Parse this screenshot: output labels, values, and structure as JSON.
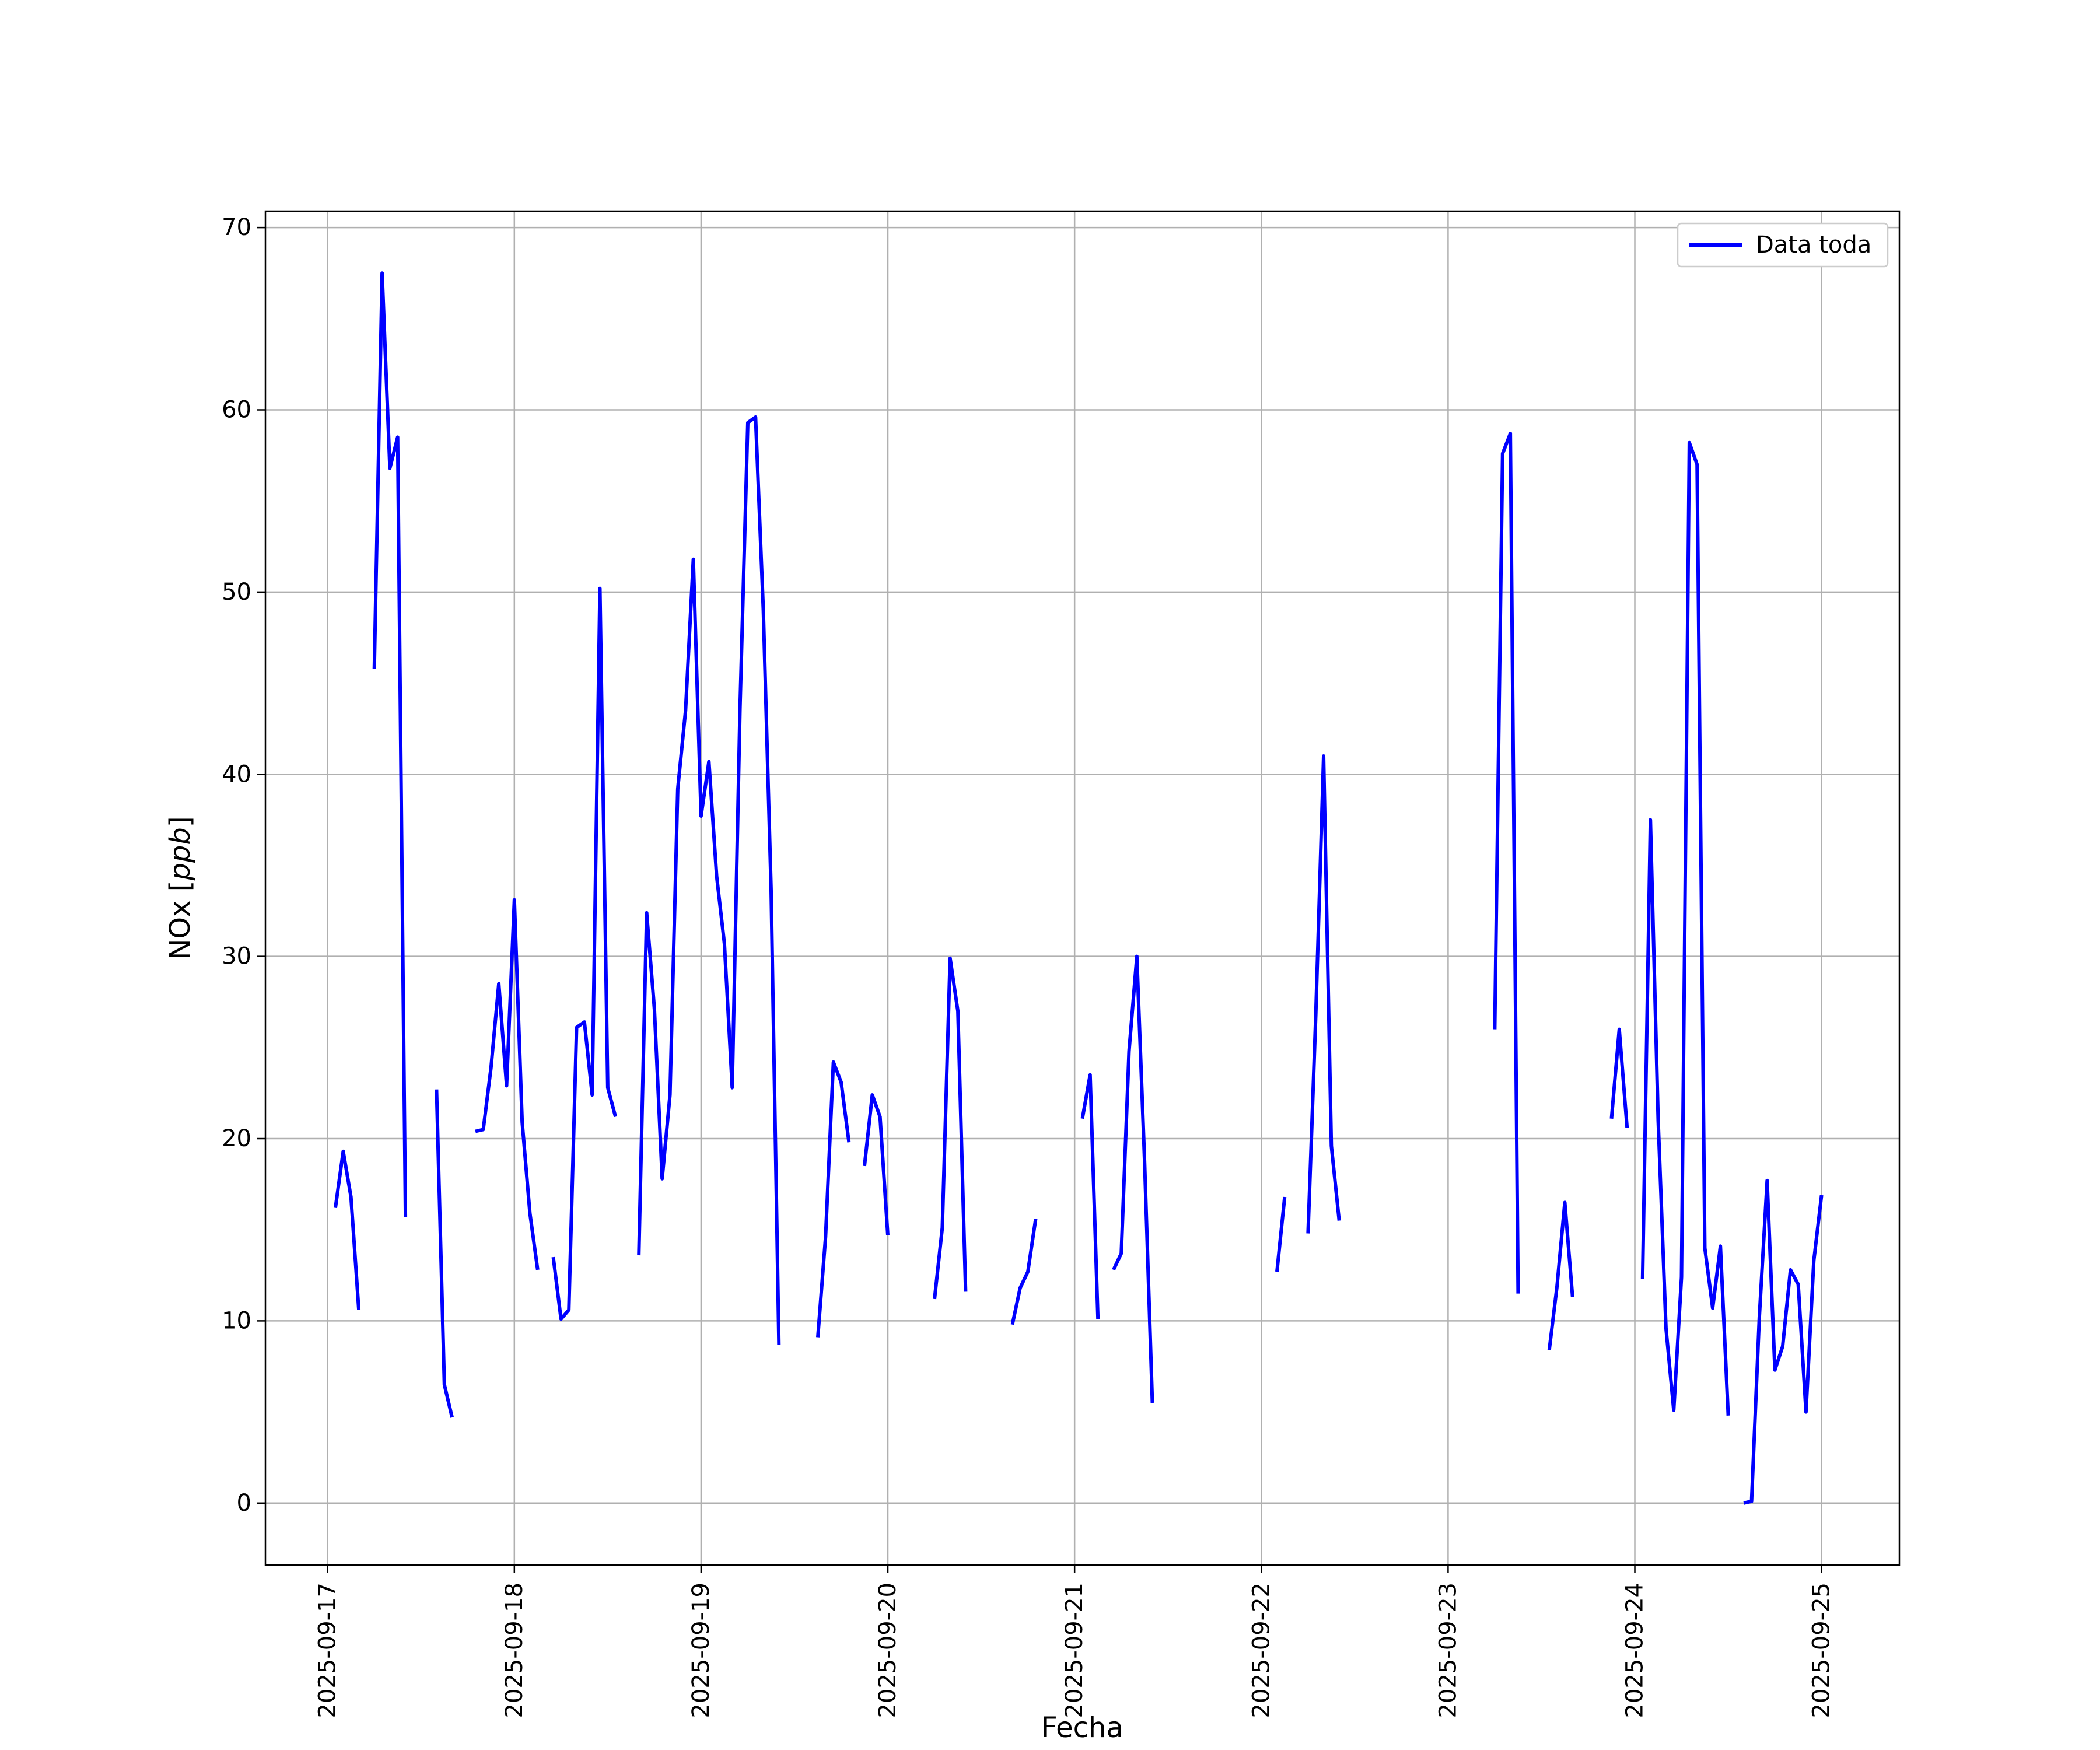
{
  "chart_data": {
    "type": "line",
    "title": "",
    "xlabel": "Fecha",
    "ylabel": "NOx [ppb]",
    "ylabel_text": "NOx ",
    "ylabel_unit": "ppb",
    "x_type": "datetime",
    "xlim": [
      "2025-09-16 16:00",
      "2025-09-25 10:00"
    ],
    "ylim": [
      -3.4,
      70.9
    ],
    "x_ticks": [
      "2025-09-17",
      "2025-09-18",
      "2025-09-19",
      "2025-09-20",
      "2025-09-21",
      "2025-09-22",
      "2025-09-23",
      "2025-09-24",
      "2025-09-25"
    ],
    "y_ticks": [
      0,
      10,
      20,
      30,
      40,
      50,
      60,
      70
    ],
    "grid": true,
    "legend_position": "top-right",
    "colors": {
      "series": "#0000ff",
      "grid": "#b0b0b0",
      "axes": "#000000"
    },
    "series": [
      {
        "name": "Data toda",
        "segments": [
          [
            [
              "2025-09-17 01:00",
              16.2
            ],
            [
              "2025-09-17 02:00",
              19.3
            ],
            [
              "2025-09-17 03:00",
              16.8
            ],
            [
              "2025-09-17 04:00",
              10.6
            ]
          ],
          [
            [
              "2025-09-17 06:00",
              45.8
            ],
            [
              "2025-09-17 07:00",
              67.5
            ],
            [
              "2025-09-17 08:00",
              56.8
            ],
            [
              "2025-09-17 09:00",
              58.5
            ],
            [
              "2025-09-17 10:00",
              15.7
            ]
          ],
          [
            [
              "2025-09-17 14:00",
              22.7
            ],
            [
              "2025-09-17 15:00",
              6.5
            ],
            [
              "2025-09-17 16:00",
              4.7
            ]
          ],
          [
            [
              "2025-09-17 19:00",
              20.4
            ],
            [
              "2025-09-17 20:00",
              20.5
            ],
            [
              "2025-09-17 21:00",
              23.9
            ],
            [
              "2025-09-17 22:00",
              28.5
            ],
            [
              "2025-09-17 23:00",
              22.9
            ],
            [
              "2025-09-18 00:00",
              33.1
            ],
            [
              "2025-09-18 01:00",
              20.9
            ],
            [
              "2025-09-18 02:00",
              15.9
            ],
            [
              "2025-09-18 03:00",
              12.8
            ]
          ],
          [
            [
              "2025-09-18 05:00",
              13.5
            ],
            [
              "2025-09-18 06:00",
              10.1
            ],
            [
              "2025-09-18 07:00",
              10.6
            ],
            [
              "2025-09-18 08:00",
              26.1
            ],
            [
              "2025-09-18 09:00",
              26.4
            ],
            [
              "2025-09-18 10:00",
              22.4
            ],
            [
              "2025-09-18 11:00",
              50.2
            ],
            [
              "2025-09-18 12:00",
              22.8
            ],
            [
              "2025-09-18 13:00",
              21.2
            ]
          ],
          [
            [
              "2025-09-18 16:00",
              13.6
            ],
            [
              "2025-09-18 17:00",
              32.4
            ],
            [
              "2025-09-18 18:00",
              27.1
            ],
            [
              "2025-09-18 19:00",
              17.8
            ],
            [
              "2025-09-18 20:00",
              22.4
            ],
            [
              "2025-09-18 21:00",
              39.2
            ],
            [
              "2025-09-18 22:00",
              43.5
            ],
            [
              "2025-09-18 23:00",
              51.8
            ],
            [
              "2025-09-19 00:00",
              37.7
            ],
            [
              "2025-09-19 01:00",
              40.7
            ],
            [
              "2025-09-19 02:00",
              34.4
            ],
            [
              "2025-09-19 03:00",
              30.7
            ],
            [
              "2025-09-19 04:00",
              22.8
            ],
            [
              "2025-09-19 05:00",
              43.6
            ],
            [
              "2025-09-19 06:00",
              59.3
            ],
            [
              "2025-09-19 07:00",
              59.6
            ],
            [
              "2025-09-19 08:00",
              49.0
            ],
            [
              "2025-09-19 09:00",
              33.6
            ],
            [
              "2025-09-19 10:00",
              8.7
            ]
          ],
          [
            [
              "2025-09-19 15:00",
              9.1
            ],
            [
              "2025-09-19 16:00",
              14.6
            ],
            [
              "2025-09-19 17:00",
              24.2
            ],
            [
              "2025-09-19 18:00",
              23.1
            ],
            [
              "2025-09-19 19:00",
              19.8
            ]
          ],
          [
            [
              "2025-09-19 21:00",
              18.5
            ],
            [
              "2025-09-19 22:00",
              22.4
            ],
            [
              "2025-09-19 23:00",
              21.2
            ],
            [
              "2025-09-20 00:00",
              14.7
            ]
          ],
          [
            [
              "2025-09-20 06:00",
              11.2
            ],
            [
              "2025-09-20 07:00",
              15.1
            ],
            [
              "2025-09-20 08:00",
              29.9
            ],
            [
              "2025-09-20 09:00",
              27.0
            ],
            [
              "2025-09-20 10:00",
              11.6
            ]
          ],
          [
            [
              "2025-09-20 16:00",
              9.8
            ],
            [
              "2025-09-20 17:00",
              11.8
            ],
            [
              "2025-09-20 18:00",
              12.7
            ],
            [
              "2025-09-20 19:00",
              15.6
            ]
          ],
          [
            [
              "2025-09-21 01:00",
              21.1
            ],
            [
              "2025-09-21 02:00",
              23.5
            ],
            [
              "2025-09-21 03:00",
              10.1
            ]
          ],
          [
            [
              "2025-09-21 05:00",
              12.8
            ],
            [
              "2025-09-21 06:00",
              13.7
            ],
            [
              "2025-09-21 07:00",
              24.8
            ],
            [
              "2025-09-21 08:00",
              30.0
            ],
            [
              "2025-09-21 09:00",
              18.7
            ],
            [
              "2025-09-21 10:00",
              5.5
            ]
          ],
          [
            [
              "2025-09-22 02:00",
              12.7
            ],
            [
              "2025-09-22 03:00",
              16.8
            ]
          ],
          [
            [
              "2025-09-22 06:00",
              14.8
            ],
            [
              "2025-09-22 07:00",
              26.8
            ],
            [
              "2025-09-22 08:00",
              41.0
            ],
            [
              "2025-09-22 09:00",
              19.6
            ],
            [
              "2025-09-22 10:00",
              15.5
            ]
          ],
          [
            [
              "2025-09-23 06:00",
              26.0
            ],
            [
              "2025-09-23 07:00",
              57.6
            ],
            [
              "2025-09-23 08:00",
              58.7
            ],
            [
              "2025-09-23 09:00",
              11.5
            ]
          ],
          [
            [
              "2025-09-23 13:00",
              8.4
            ],
            [
              "2025-09-23 14:00",
              11.9
            ],
            [
              "2025-09-23 15:00",
              16.5
            ],
            [
              "2025-09-23 16:00",
              11.3
            ]
          ],
          [
            [
              "2025-09-23 21:00",
              21.1
            ],
            [
              "2025-09-23 22:00",
              26.0
            ],
            [
              "2025-09-23 23:00",
              20.6
            ]
          ],
          [
            [
              "2025-09-24 01:00",
              12.3
            ],
            [
              "2025-09-24 02:00",
              37.5
            ],
            [
              "2025-09-24 03:00",
              21.0
            ],
            [
              "2025-09-24 04:00",
              9.6
            ],
            [
              "2025-09-24 05:00",
              5.1
            ],
            [
              "2025-09-24 06:00",
              12.4
            ],
            [
              "2025-09-24 07:00",
              58.2
            ],
            [
              "2025-09-24 08:00",
              57.0
            ],
            [
              "2025-09-24 09:00",
              14.0
            ],
            [
              "2025-09-24 10:00",
              10.7
            ],
            [
              "2025-09-24 11:00",
              14.1
            ],
            [
              "2025-09-24 12:00",
              4.8
            ]
          ],
          [
            [
              "2025-09-24 14:00",
              0.0
            ],
            [
              "2025-09-24 15:00",
              0.1
            ],
            [
              "2025-09-24 16:00",
              10.2
            ],
            [
              "2025-09-24 17:00",
              17.7
            ],
            [
              "2025-09-24 18:00",
              7.3
            ],
            [
              "2025-09-24 19:00",
              8.6
            ],
            [
              "2025-09-24 20:00",
              12.8
            ],
            [
              "2025-09-24 21:00",
              12.0
            ],
            [
              "2025-09-24 22:00",
              5.0
            ],
            [
              "2025-09-24 23:00",
              13.3
            ],
            [
              "2025-09-25 00:00",
              16.9
            ]
          ]
        ]
      }
    ]
  }
}
